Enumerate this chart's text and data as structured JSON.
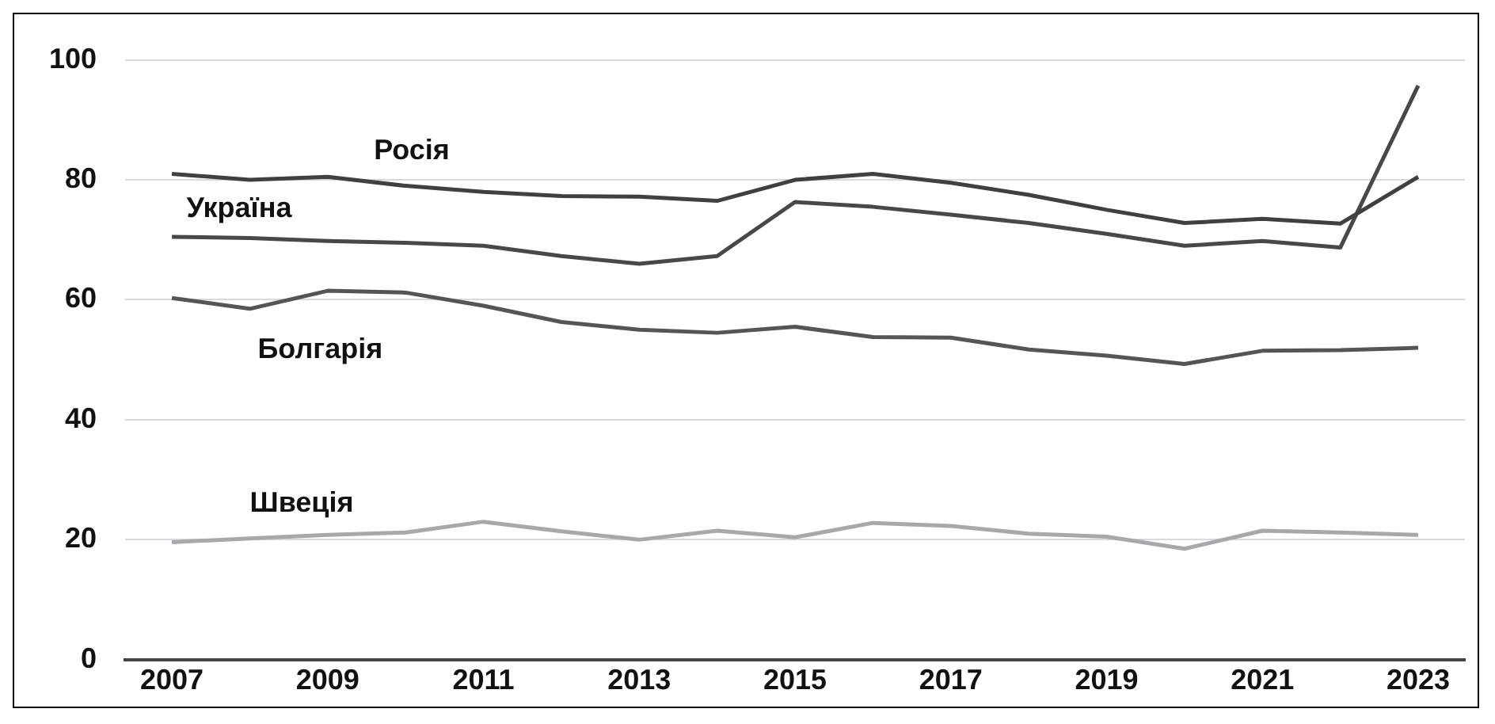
{
  "chart_data": {
    "type": "line",
    "x": [
      2007,
      2008,
      2009,
      2010,
      2011,
      2012,
      2013,
      2014,
      2015,
      2016,
      2017,
      2018,
      2019,
      2020,
      2021,
      2022,
      2023
    ],
    "series": [
      {
        "name": "Росія",
        "color": "#404040",
        "values": [
          81,
          80,
          80.5,
          79,
          78,
          77.3,
          77.2,
          76.5,
          80,
          81,
          79.5,
          77.5,
          75,
          72.8,
          73.5,
          72.7,
          80.5
        ]
      },
      {
        "name": "Україна",
        "color": "#484848",
        "values": [
          70.5,
          70.3,
          69.8,
          69.5,
          69,
          67.3,
          66,
          67.3,
          76.3,
          75.5,
          74.2,
          72.8,
          71,
          69,
          69.8,
          68.7,
          95.7
        ]
      },
      {
        "name": "Болгарія",
        "color": "#555555",
        "values": [
          60.3,
          58.5,
          61.5,
          61.2,
          59,
          56.3,
          55,
          54.5,
          55.5,
          53.8,
          53.7,
          51.7,
          50.7,
          49.3,
          51.5,
          51.6,
          52
        ]
      },
      {
        "name": "Швеція",
        "color": "#a8a8a8",
        "values": [
          19.6,
          20.2,
          20.8,
          21.2,
          23,
          21.4,
          20,
          21.5,
          20.4,
          22.8,
          22.3,
          21,
          20.5,
          18.5,
          21.5,
          21.2,
          20.8
        ]
      }
    ],
    "xlim": [
      2006.4,
      2023.6
    ],
    "xticks": [
      2007,
      2009,
      2011,
      2013,
      2015,
      2017,
      2019,
      2021,
      2023
    ],
    "ylim": [
      0,
      100
    ],
    "yticks": [
      0,
      20,
      40,
      60,
      80,
      100
    ],
    "grid": "y",
    "legend": false,
    "marker": "none",
    "line_style": "solid"
  }
}
